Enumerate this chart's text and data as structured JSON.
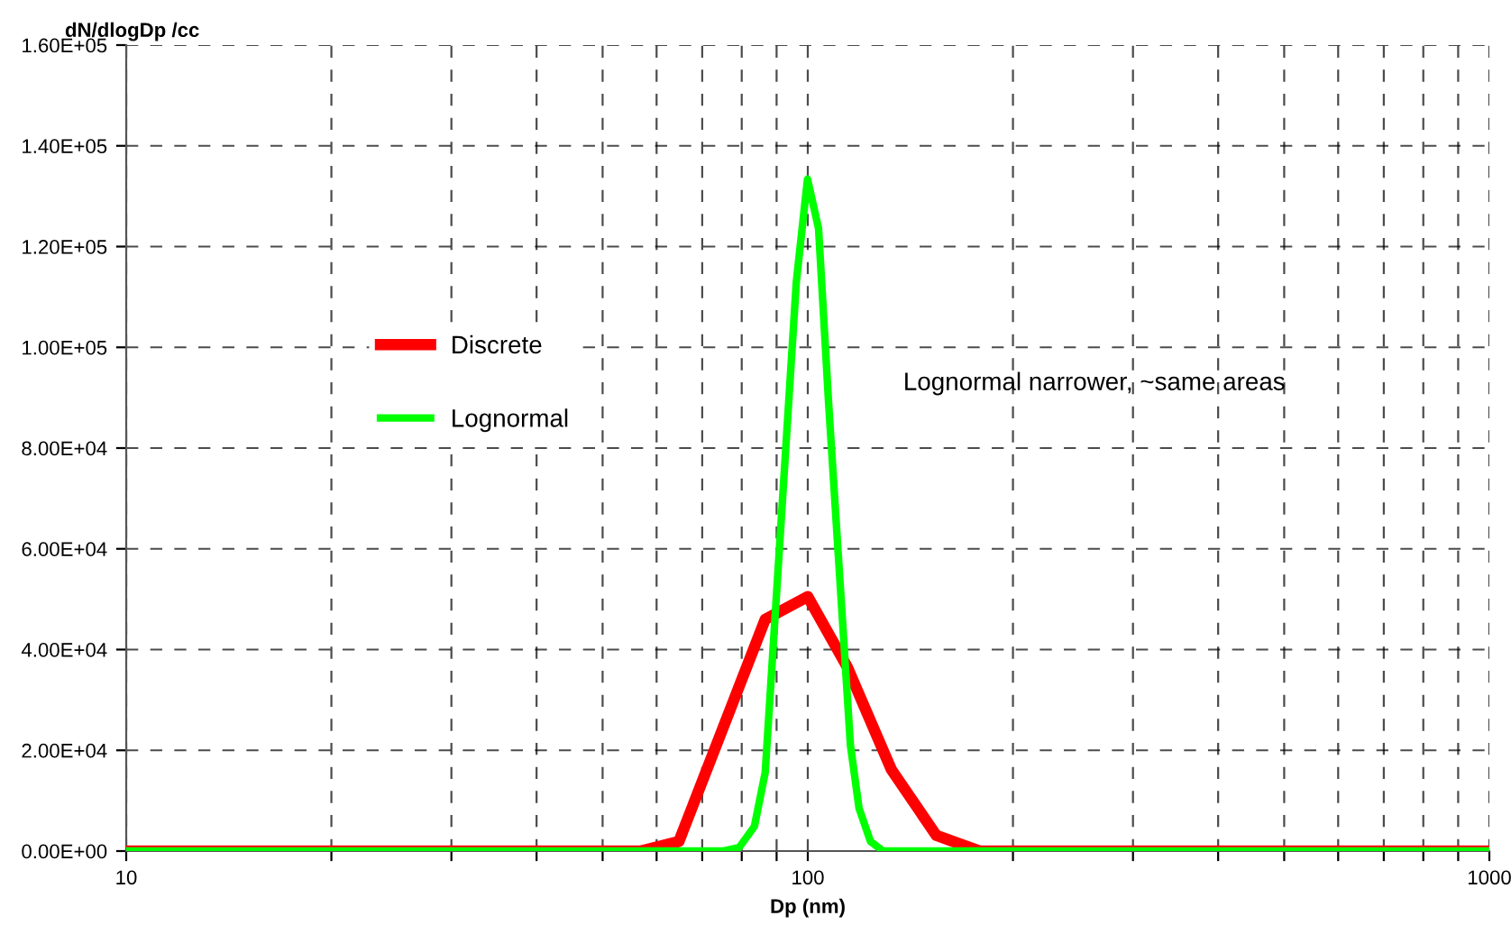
{
  "chart_data": {
    "type": "line",
    "xlabel": "Dp (nm)",
    "ylabel": "dN/dlogDp /cc",
    "log": "x",
    "grid": true,
    "legend": "center left",
    "line_style": "solid",
    "marker": "none",
    "annotations": [
      "Lognormal narrower, ~same areas"
    ],
    "xlim": [
      10,
      1000
    ],
    "ylim": [
      0,
      160000
    ],
    "xticks": [
      10,
      {
        "value": 20,
        "label": null
      },
      {
        "value": 30,
        "label": null
      },
      {
        "value": 40,
        "label": null
      },
      {
        "value": 50,
        "label": null
      },
      {
        "value": 60,
        "label": null
      },
      {
        "value": 70,
        "label": null
      },
      {
        "value": 80,
        "label": null
      },
      {
        "value": 90,
        "label": null
      },
      100,
      {
        "value": 200,
        "label": null
      },
      {
        "value": 300,
        "label": null
      },
      {
        "value": 400,
        "label": null
      },
      {
        "value": 500,
        "label": null
      },
      {
        "value": 600,
        "label": null
      },
      {
        "value": 700,
        "label": null
      },
      {
        "value": 800,
        "label": null
      },
      {
        "value": 900,
        "label": null
      },
      1000
    ],
    "yticks": [
      {
        "value": 0,
        "label": "0.00E+00"
      },
      {
        "value": 20000,
        "label": "2.00E+04"
      },
      {
        "value": 40000,
        "label": "4.00E+04"
      },
      {
        "value": 60000,
        "label": "6.00E+04"
      },
      {
        "value": 80000,
        "label": "8.00E+04"
      },
      {
        "value": 100000,
        "label": "1.00E+05"
      },
      {
        "value": 120000,
        "label": "1.20E+05"
      },
      {
        "value": 140000,
        "label": "1.40E+05"
      },
      {
        "value": 160000,
        "label": "1.60E+05"
      }
    ],
    "series": [
      {
        "name": "Discrete",
        "color": "#ff0000",
        "x": [
          10,
          56.8,
          64.7,
          86.6,
          100,
          114.3,
          132.6,
          154.4,
          178.6,
          1000
        ],
        "values": [
          0,
          0,
          1900,
          46000,
          50500,
          36500,
          16200,
          3100,
          0,
          0
        ]
      },
      {
        "name": "Lognormal",
        "color": "#00ff00",
        "x": [
          10,
          75,
          79.3,
          83.5,
          86.6,
          96.2,
          99.9,
          103.7,
          107.3,
          115.5,
          118.9,
          123.6,
          129,
          1000
        ],
        "values": [
          0,
          0,
          700,
          4900,
          15600,
          113000,
          133400,
          123600,
          88800,
          21000,
          8500,
          1900,
          0,
          0
        ]
      }
    ]
  }
}
